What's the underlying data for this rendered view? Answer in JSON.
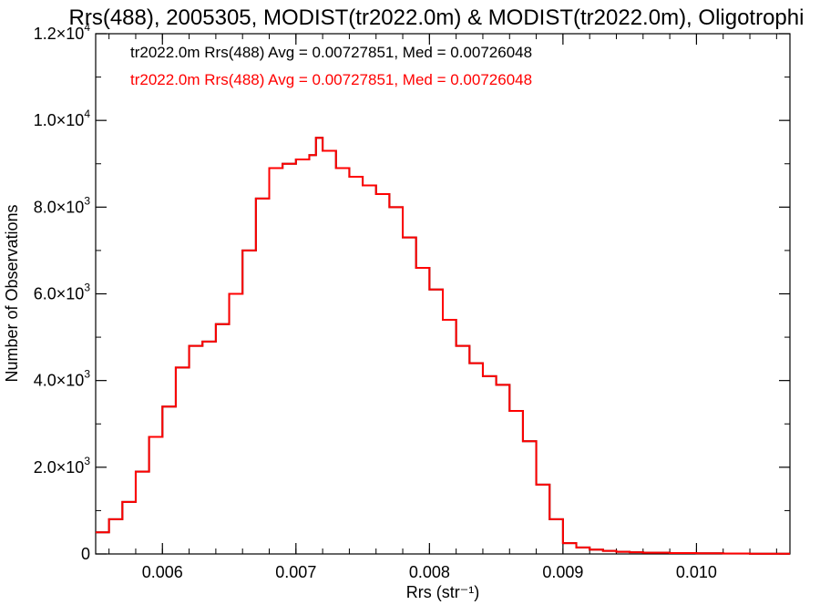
{
  "chart_data": {
    "type": "line",
    "title": "Rrs(488), 2005305, MODIST(tr2022.0m) & MODIST(tr2022.0m), Oligotrophi",
    "xlabel": "Rrs (str⁻¹)",
    "ylabel": "Number of Observations",
    "xlim": [
      0.0055,
      0.0107
    ],
    "ylim": [
      0,
      12000
    ],
    "xticks": [
      0.006,
      0.007,
      0.008,
      0.009,
      0.01
    ],
    "xtick_labels": [
      "0.006",
      "0.007",
      "0.008",
      "0.009",
      "0.010"
    ],
    "yticks": [
      0,
      2000,
      4000,
      6000,
      8000,
      10000,
      12000
    ],
    "ytick_labels": [
      {
        "mant": "0",
        "exp": ""
      },
      {
        "mant": "2.0×10",
        "exp": "3"
      },
      {
        "mant": "4.0×10",
        "exp": "3"
      },
      {
        "mant": "6.0×10",
        "exp": "3"
      },
      {
        "mant": "8.0×10",
        "exp": "3"
      },
      {
        "mant": "1.0×10",
        "exp": "4"
      },
      {
        "mant": "1.2×10",
        "exp": "4"
      }
    ],
    "grid": false,
    "legend_position": "top-left",
    "annotations": [
      {
        "text": "tr2022.0m Rrs(488) Avg = 0.00727851, Med = 0.00726048",
        "color": "#000000"
      },
      {
        "text": "tr2022.0m Rrs(488) Avg = 0.00727851, Med = 0.00726048",
        "color": "#ff0000"
      }
    ],
    "series": [
      {
        "color": "#000000",
        "step": true,
        "x": [
          0.0055,
          0.0056,
          0.0057,
          0.0058,
          0.0059,
          0.006,
          0.0061,
          0.0062,
          0.0063,
          0.0064,
          0.0065,
          0.0066,
          0.0067,
          0.0068,
          0.0069,
          0.007,
          0.0071,
          0.00715,
          0.0072,
          0.0073,
          0.0074,
          0.0075,
          0.0076,
          0.0077,
          0.0078,
          0.0079,
          0.008,
          0.0081,
          0.0082,
          0.0083,
          0.0084,
          0.0085,
          0.0086,
          0.0087,
          0.0088,
          0.0089,
          0.009,
          0.0091,
          0.0092,
          0.0093,
          0.0094,
          0.0095,
          0.0096,
          0.0098,
          0.01,
          0.0102,
          0.0104,
          0.0107
        ],
        "y": [
          500,
          800,
          1200,
          1900,
          2700,
          3400,
          4300,
          4800,
          4900,
          5300,
          6000,
          7000,
          8200,
          8900,
          9000,
          9100,
          9200,
          9600,
          9300,
          8900,
          8700,
          8500,
          8300,
          8000,
          7300,
          6600,
          6100,
          5400,
          4800,
          4400,
          4100,
          3900,
          3300,
          2600,
          1600,
          800,
          250,
          150,
          100,
          70,
          50,
          40,
          30,
          20,
          15,
          10,
          5,
          5
        ]
      },
      {
        "color": "#ff0000",
        "step": true,
        "x": [
          0.0055,
          0.0056,
          0.0057,
          0.0058,
          0.0059,
          0.006,
          0.0061,
          0.0062,
          0.0063,
          0.0064,
          0.0065,
          0.0066,
          0.0067,
          0.0068,
          0.0069,
          0.007,
          0.0071,
          0.00715,
          0.0072,
          0.0073,
          0.0074,
          0.0075,
          0.0076,
          0.0077,
          0.0078,
          0.0079,
          0.008,
          0.0081,
          0.0082,
          0.0083,
          0.0084,
          0.0085,
          0.0086,
          0.0087,
          0.0088,
          0.0089,
          0.009,
          0.0091,
          0.0092,
          0.0093,
          0.0094,
          0.0095,
          0.0096,
          0.0098,
          0.01,
          0.0102,
          0.0104,
          0.0107
        ],
        "y": [
          500,
          800,
          1200,
          1900,
          2700,
          3400,
          4300,
          4800,
          4900,
          5300,
          6000,
          7000,
          8200,
          8900,
          9000,
          9100,
          9200,
          9600,
          9300,
          8900,
          8700,
          8500,
          8300,
          8000,
          7300,
          6600,
          6100,
          5400,
          4800,
          4400,
          4100,
          3900,
          3300,
          2600,
          1600,
          800,
          250,
          150,
          100,
          70,
          50,
          40,
          30,
          20,
          15,
          10,
          5,
          5
        ]
      }
    ]
  }
}
